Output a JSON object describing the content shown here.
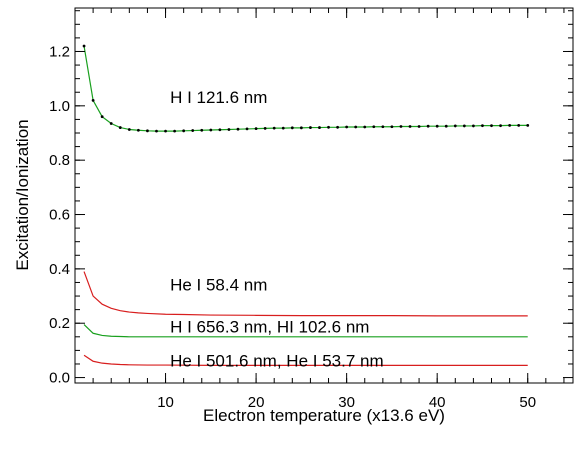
{
  "chart_data": {
    "type": "line",
    "title": "",
    "xlabel": "Electron temperature (x13.6 eV)",
    "ylabel": "Excitation/Ionization",
    "xlim": [
      0,
      55
    ],
    "ylim": [
      -0.02,
      1.36
    ],
    "xticks": [
      10,
      20,
      30,
      40,
      50
    ],
    "yticks": [
      0.0,
      0.2,
      0.4,
      0.6,
      0.8,
      1.0,
      1.2
    ],
    "xtick_labels": [
      "10",
      "20",
      "30",
      "40",
      "50"
    ],
    "ytick_labels": [
      "0.0",
      "0.2",
      "0.4",
      "0.6",
      "0.8",
      "1.0",
      "1.2"
    ],
    "grid": false,
    "series": [
      {
        "name": "H I 121.6 nm",
        "color": "#19a01e",
        "marker": "dot",
        "x": [
          1,
          2,
          3,
          4,
          5,
          6,
          7,
          8,
          9,
          10,
          11,
          12,
          13,
          14,
          15,
          16,
          17,
          18,
          19,
          20,
          21,
          22,
          23,
          24,
          25,
          26,
          27,
          28,
          29,
          30,
          31,
          32,
          33,
          34,
          35,
          36,
          37,
          38,
          39,
          40,
          41,
          42,
          43,
          44,
          45,
          46,
          47,
          48,
          49,
          50
        ],
        "y": [
          1.22,
          1.02,
          0.96,
          0.935,
          0.92,
          0.913,
          0.91,
          0.908,
          0.907,
          0.907,
          0.907,
          0.908,
          0.909,
          0.91,
          0.911,
          0.912,
          0.913,
          0.914,
          0.915,
          0.916,
          0.917,
          0.918,
          0.918,
          0.919,
          0.919,
          0.92,
          0.92,
          0.921,
          0.921,
          0.922,
          0.922,
          0.922,
          0.923,
          0.923,
          0.923,
          0.924,
          0.924,
          0.924,
          0.925,
          0.925,
          0.925,
          0.926,
          0.926,
          0.926,
          0.927,
          0.927,
          0.927,
          0.928,
          0.928,
          0.928
        ]
      },
      {
        "name": "He I 58.4 nm",
        "color": "#d81e1e",
        "x": [
          1,
          2,
          3,
          4,
          5,
          6,
          7,
          8,
          10,
          12,
          15,
          20,
          25,
          30,
          35,
          40,
          45,
          50
        ],
        "y": [
          0.39,
          0.3,
          0.27,
          0.255,
          0.246,
          0.241,
          0.238,
          0.236,
          0.233,
          0.232,
          0.23,
          0.229,
          0.228,
          0.228,
          0.228,
          0.227,
          0.227,
          0.227
        ]
      },
      {
        "name": "H I 656.3 nm, HI 102.6 nm",
        "color": "#19a01e",
        "x": [
          1,
          2,
          3,
          4,
          5,
          6,
          8,
          10,
          15,
          20,
          30,
          40,
          50
        ],
        "y": [
          0.195,
          0.163,
          0.155,
          0.152,
          0.151,
          0.15,
          0.15,
          0.15,
          0.15,
          0.15,
          0.15,
          0.15,
          0.15
        ]
      },
      {
        "name": "He I 501.6 nm, He I 53.7 nm",
        "color": "#d81e1e",
        "x": [
          1,
          2,
          3,
          4,
          5,
          6,
          8,
          10,
          15,
          20,
          30,
          40,
          50
        ],
        "y": [
          0.082,
          0.06,
          0.053,
          0.05,
          0.048,
          0.047,
          0.046,
          0.046,
          0.045,
          0.045,
          0.045,
          0.045,
          0.045
        ]
      }
    ],
    "annotations": [
      {
        "text": "H I 121.6 nm",
        "x": 10.5,
        "y": 1.01
      },
      {
        "text": "He I 58.4 nm",
        "x": 10.5,
        "y": 0.32
      },
      {
        "text": "H I 656.3 nm, HI 102.6 nm",
        "x": 10.5,
        "y": 0.165
      },
      {
        "text": "He I 501.6 nm, He I 53.7 nm",
        "x": 10.5,
        "y": 0.04
      }
    ]
  }
}
